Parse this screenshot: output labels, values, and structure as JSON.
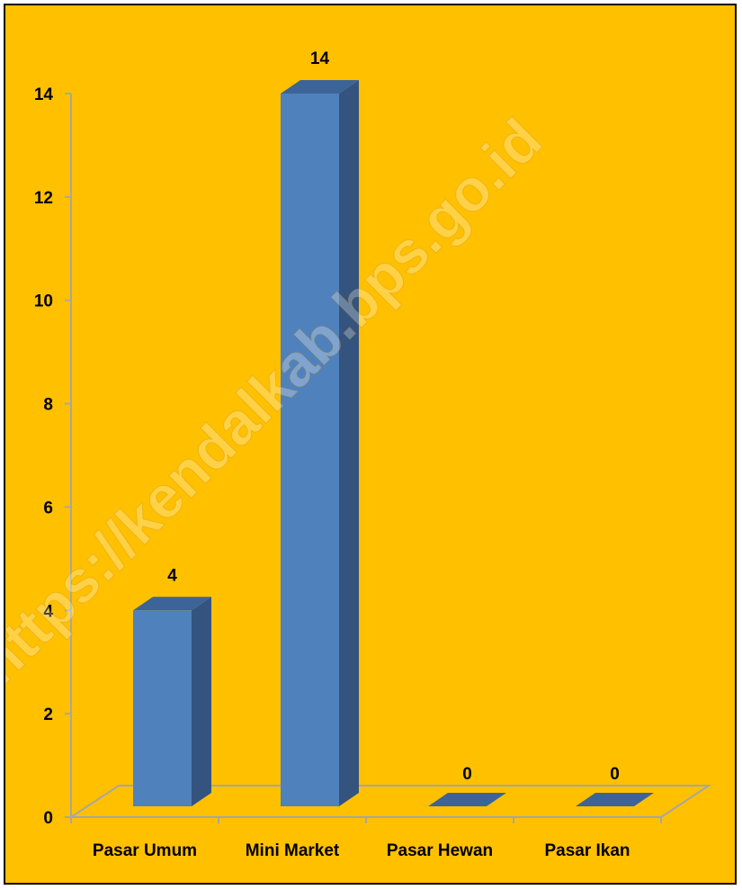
{
  "chart_data": {
    "type": "bar",
    "style": "3d-column",
    "categories": [
      "Pasar Umum",
      "Mini Market",
      "Pasar Hewan",
      "Pasar Ikan"
    ],
    "series": [
      {
        "values": [
          4,
          14,
          0,
          0
        ]
      }
    ],
    "data_labels": [
      "4",
      "14",
      "0",
      "0"
    ],
    "y_ticks": [
      "0",
      "2",
      "4",
      "6",
      "8",
      "10",
      "12",
      "14"
    ],
    "ylim": [
      0,
      14
    ],
    "grid": false,
    "legend": "none",
    "watermark": "https://kendalkab.bps.go.id",
    "colors": {
      "background": "#FFC000",
      "bar_front": "#4F81BD",
      "bar_side": "#34537F",
      "bar_top": "#3D6498",
      "axis": "#A6A6A6",
      "border": "#000000"
    }
  }
}
